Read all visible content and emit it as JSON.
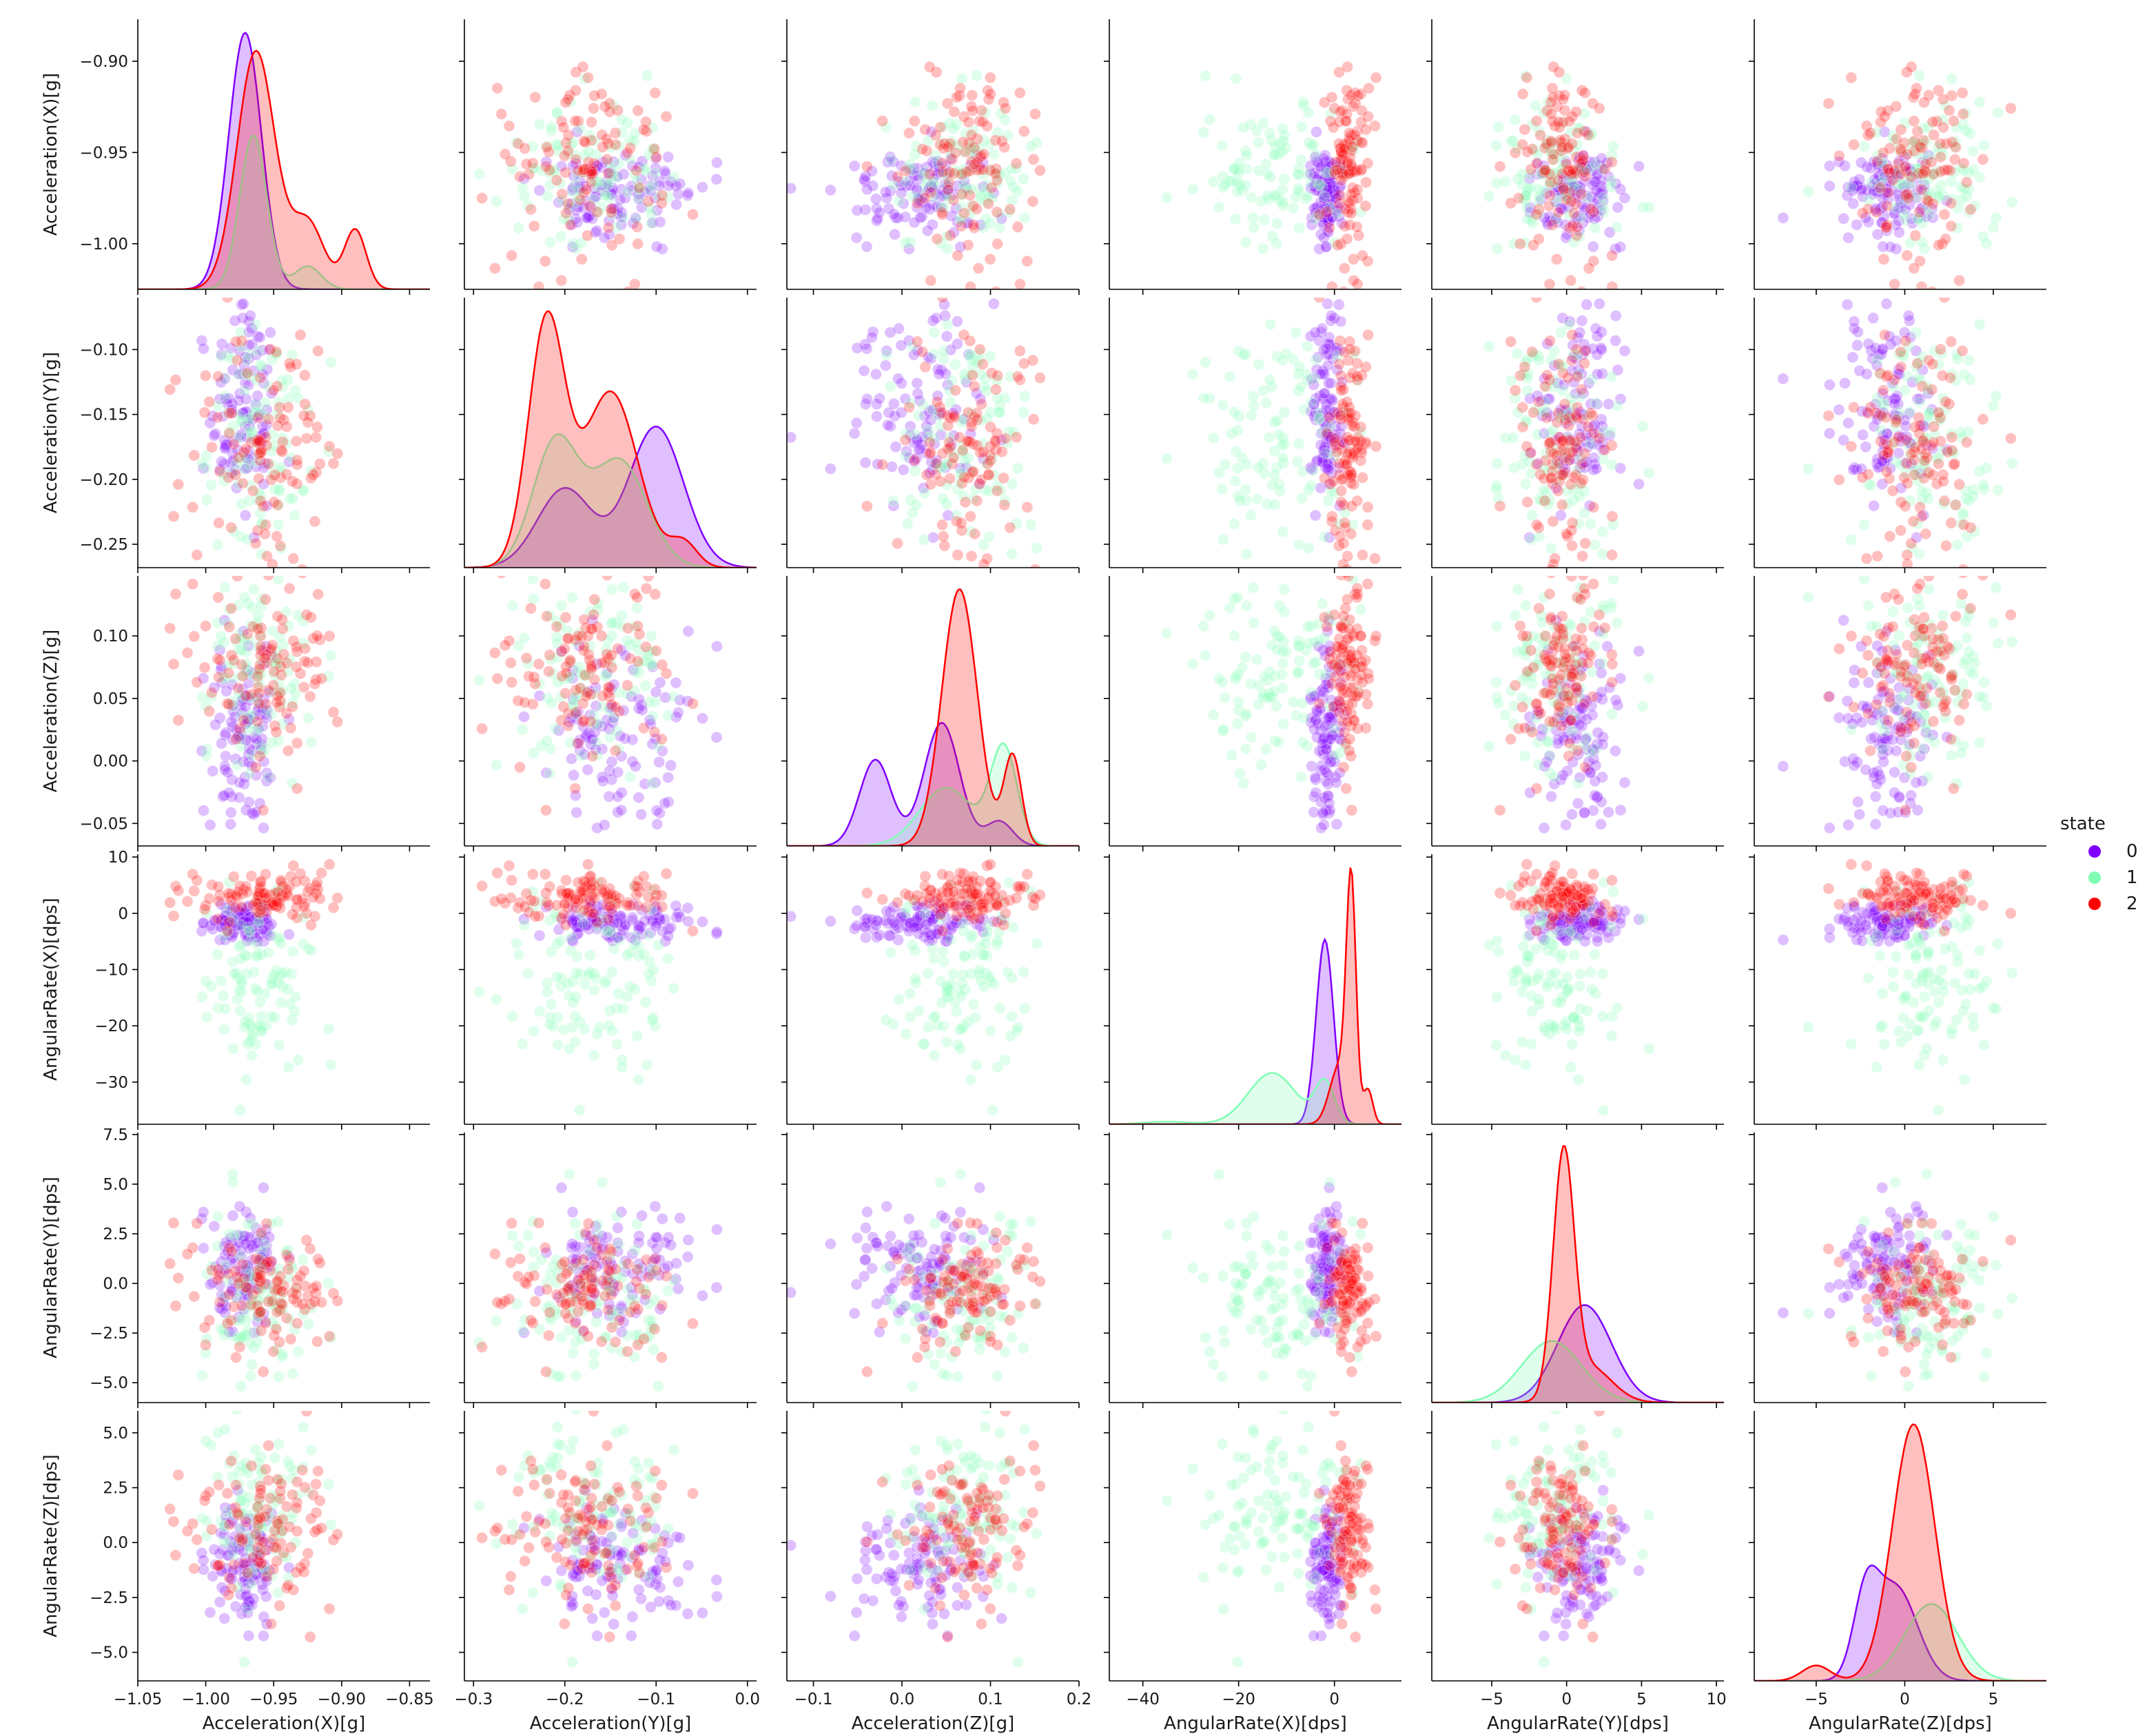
{
  "chart_data": {
    "type": "scatter",
    "kind": "pairplot",
    "grid": false,
    "variables": [
      {
        "key": "ax",
        "label": "Acceleration(X)[g]",
        "lim": [
          -1.05,
          -0.835
        ],
        "ticks": [
          -1.05,
          -1.0,
          -0.95,
          -0.9,
          -0.85
        ],
        "tick_labels": [
          "−1.05",
          "−1.00",
          "−0.95",
          "−0.90",
          "−0.85"
        ],
        "y_lim": [
          -1.025,
          -0.877
        ],
        "y_ticks": [
          -1.0,
          -0.95,
          -0.9
        ],
        "y_tick_labels": [
          "−1.00",
          "−0.95",
          "−0.90"
        ]
      },
      {
        "key": "ay",
        "label": "Acceleration(Y)[g]",
        "lim": [
          -0.31,
          0.01
        ],
        "ticks": [
          -0.3,
          -0.2,
          -0.1,
          0.0
        ],
        "tick_labels": [
          "−0.3",
          "−0.2",
          "−0.1",
          "0.0"
        ],
        "y_lim": [
          -0.268,
          -0.06
        ],
        "y_ticks": [
          -0.25,
          -0.2,
          -0.15,
          -0.1
        ],
        "y_tick_labels": [
          "−0.25",
          "−0.20",
          "−0.15",
          "−0.10"
        ]
      },
      {
        "key": "az",
        "label": "Acceleration(Z)[g]",
        "lim": [
          -0.13,
          0.2
        ],
        "ticks": [
          -0.1,
          0.0,
          0.1,
          0.2
        ],
        "tick_labels": [
          "−0.1",
          "0.0",
          "0.1",
          "0.2"
        ],
        "y_lim": [
          -0.068,
          0.148
        ],
        "y_ticks": [
          -0.05,
          0.0,
          0.05,
          0.1,
          0.15
        ],
        "y_tick_labels": [
          "−0.05",
          "0.00",
          "0.05",
          "0.10",
          "0.15"
        ]
      },
      {
        "key": "gx",
        "label": "AngularRate(X)[dps]",
        "lim": [
          -47,
          14
        ],
        "ticks": [
          -40,
          -20,
          0
        ],
        "tick_labels": [
          "−40",
          "−20",
          "0"
        ],
        "y_lim": [
          -37.5,
          10.5
        ],
        "y_ticks": [
          -30,
          -20,
          -10,
          0,
          10
        ],
        "y_tick_labels": [
          "−30",
          "−20",
          "−10",
          "0",
          "10"
        ]
      },
      {
        "key": "gy",
        "label": "AngularRate(Y)[dps]",
        "lim": [
          -9,
          10.5
        ],
        "ticks": [
          -5,
          0,
          5,
          10
        ],
        "tick_labels": [
          "−5",
          "0",
          "5",
          "10"
        ],
        "y_lim": [
          -6.0,
          7.6
        ],
        "y_ticks": [
          -5.0,
          -2.5,
          0.0,
          2.5,
          5.0,
          7.5
        ],
        "y_tick_labels": [
          "−5.0",
          "−2.5",
          "0.0",
          "2.5",
          "5.0",
          "7.5"
        ]
      },
      {
        "key": "gz",
        "label": "AngularRate(Z)[dps]",
        "lim": [
          -8.5,
          8.0
        ],
        "ticks": [
          -5,
          0,
          5
        ],
        "tick_labels": [
          "−5",
          "0",
          "5"
        ],
        "y_lim": [
          -6.3,
          6.0
        ],
        "y_ticks": [
          -5.0,
          -2.5,
          0.0,
          2.5,
          5.0
        ],
        "y_tick_labels": [
          "−5.0",
          "−2.5",
          "0.0",
          "2.5",
          "5.0"
        ]
      }
    ],
    "hue": {
      "title": "state",
      "levels": [
        {
          "name": "0",
          "color": "#8000ff"
        },
        {
          "name": "1",
          "color": "#80ffb4"
        },
        {
          "name": "2",
          "color": "#ff0000"
        }
      ]
    },
    "legend_placement": "right",
    "diag": "kde",
    "offdiag": "scatter",
    "series": [
      {
        "name": "0",
        "centers": {
          "ax": -0.972,
          "ay": -0.15,
          "az": 0.02,
          "gx": -1.5,
          "gy": 1.0,
          "gz": -1.0
        },
        "spreads": {
          "ax": 0.012,
          "ay": 0.05,
          "az": 0.04,
          "gx": 2.0,
          "gy": 1.6,
          "gz": 1.4
        },
        "kde": {
          "ax": {
            "peaks": [
              [
                -0.971,
                0.012,
                1.0
              ]
            ],
            "peak_height": 1.0
          },
          "ay": {
            "peaks": [
              [
                -0.2,
                0.03,
                0.45
              ],
              [
                -0.1,
                0.03,
                0.8
              ]
            ],
            "peak_height": 0.55
          },
          "az": {
            "peaks": [
              [
                -0.03,
                0.018,
                0.7
              ],
              [
                0.045,
                0.02,
                1.0
              ],
              [
                0.11,
                0.015,
                0.2
              ]
            ],
            "peak_height": 0.48
          },
          "gx": {
            "peaks": [
              [
                -2.0,
                1.8,
                1.0
              ]
            ],
            "peak_height": 0.72
          },
          "gy": {
            "peaks": [
              [
                1.2,
                1.8,
                1.0
              ]
            ],
            "peak_height": 0.38
          },
          "gz": {
            "peaks": [
              [
                -2.2,
                0.7,
                0.8
              ],
              [
                -0.5,
                1.2,
                1.0
              ]
            ],
            "peak_height": 0.45
          }
        }
      },
      {
        "name": "1",
        "centers": {
          "ax": -0.962,
          "ay": -0.17,
          "az": 0.07,
          "gx": -12.0,
          "gy": -0.5,
          "gz": 1.5
        },
        "spreads": {
          "ax": 0.018,
          "ay": 0.045,
          "az": 0.035,
          "gx": 8.0,
          "gy": 2.0,
          "gz": 1.8
        },
        "kde": {
          "ax": {
            "peaks": [
              [
                -0.965,
                0.01,
                1.0
              ],
              [
                -0.925,
                0.01,
                0.15
              ]
            ],
            "peak_height": 0.6
          },
          "ay": {
            "peaks": [
              [
                -0.21,
                0.025,
                1.0
              ],
              [
                -0.14,
                0.03,
                0.85
              ]
            ],
            "peak_height": 0.52
          },
          "az": {
            "peaks": [
              [
                0.05,
                0.03,
                0.6
              ],
              [
                0.115,
                0.015,
                1.0
              ]
            ],
            "peak_height": 0.4
          },
          "gx": {
            "peaks": [
              [
                -13.0,
                5.0,
                1.0
              ],
              [
                -2.0,
                2.0,
                0.8
              ],
              [
                -35.0,
                5.0,
                0.05
              ]
            ],
            "peak_height": 0.2
          },
          "gy": {
            "peaks": [
              [
                -1.0,
                2.0,
                1.0
              ]
            ],
            "peak_height": 0.24
          },
          "gz": {
            "peaks": [
              [
                1.5,
                1.5,
                1.0
              ]
            ],
            "peak_height": 0.3
          }
        }
      },
      {
        "name": "2",
        "centers": {
          "ax": -0.955,
          "ay": -0.18,
          "az": 0.07,
          "gx": 3.0,
          "gy": -0.3,
          "gz": 0.5
        },
        "spreads": {
          "ax": 0.028,
          "ay": 0.05,
          "az": 0.035,
          "gx": 2.5,
          "gy": 1.5,
          "gz": 1.6
        },
        "kde": {
          "ax": {
            "peaks": [
              [
                -0.963,
                0.014,
                1.0
              ],
              [
                -0.925,
                0.012,
                0.28
              ],
              [
                -0.89,
                0.008,
                0.25
              ]
            ],
            "peak_height": 0.93
          },
          "ay": {
            "peaks": [
              [
                -0.22,
                0.02,
                1.0
              ],
              [
                -0.15,
                0.03,
                0.72
              ],
              [
                -0.07,
                0.015,
                0.1
              ]
            ],
            "peak_height": 1.0
          },
          "az": {
            "peaks": [
              [
                0.065,
                0.02,
                1.0
              ],
              [
                0.125,
                0.01,
                0.35
              ]
            ],
            "peak_height": 1.0
          },
          "gx": {
            "peaks": [
              [
                3.5,
                1.0,
                1.0
              ],
              [
                1.0,
                2.0,
                0.25
              ],
              [
                7.0,
                1.0,
                0.15
              ]
            ],
            "peak_height": 1.0
          },
          "gy": {
            "peaks": [
              [
                -0.2,
                0.7,
                1.0
              ],
              [
                1.5,
                1.5,
                0.15
              ]
            ],
            "peak_height": 1.0
          },
          "gz": {
            "peaks": [
              [
                0.5,
                1.2,
                1.0
              ],
              [
                -5.0,
                0.8,
                0.06
              ]
            ],
            "peak_height": 1.0
          }
        }
      }
    ]
  }
}
